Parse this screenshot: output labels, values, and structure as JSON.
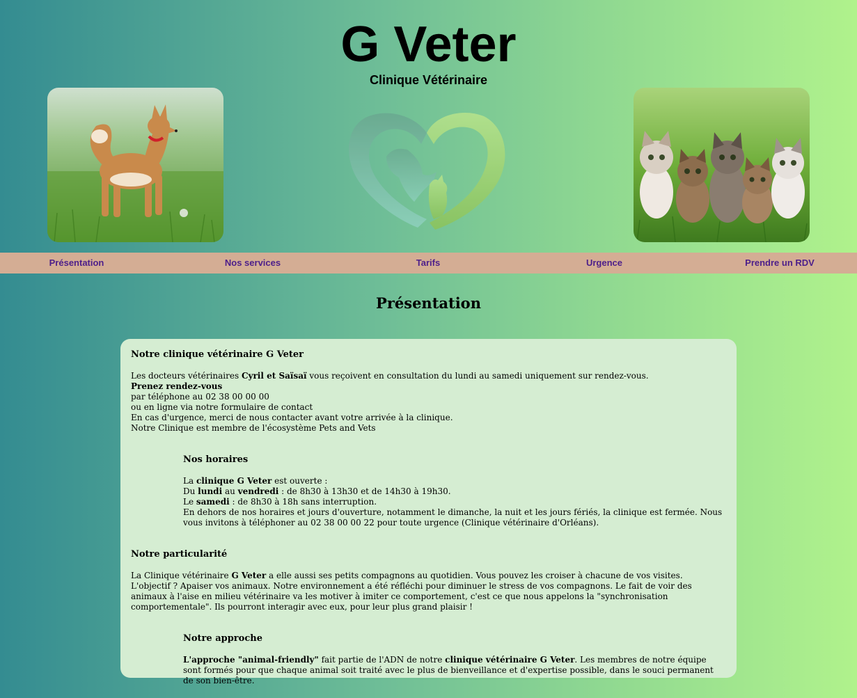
{
  "header": {
    "title": "G Veter",
    "subtitle": "Clinique Vétérinaire"
  },
  "images": {
    "left": "shiba-dog-photo",
    "logo": "heart-pets-logo",
    "right": "kittens-photo"
  },
  "nav": {
    "items": [
      "Présentation",
      "Nos services",
      "Tarifs",
      "Urgence",
      "Prendre un RDV"
    ],
    "link_color": "#4d1f8a",
    "bar_color": "#d4ad94"
  },
  "page": {
    "section_title": "Présentation"
  },
  "card": {
    "clinic": {
      "heading": "Notre clinique vétérinaire G Veter",
      "line1_pre": "Les docteurs vétérinaires ",
      "line1_bold": "Cyril et Saïsaï",
      "line1_post": " vous reçoivent en consultation du lundi au samedi uniquement sur rendez-vous.",
      "line2_bold": "Prenez rendez-vous",
      "line3": "par téléphone au 02 38 00 00 00",
      "line4": "ou en ligne via notre formulaire de contact",
      "line5": "En cas d'urgence, merci de nous contacter avant votre arrivée à la clinique.",
      "line6": "Notre Clinique est membre de l'écosystème Pets and Vets"
    },
    "hours": {
      "heading": "Nos horaires",
      "l1_pre": "La ",
      "l1_bold": "clinique G Veter",
      "l1_post": " est ouverte :",
      "l2_pre": "Du ",
      "l2_b1": "lundi",
      "l2_mid": " au ",
      "l2_b2": "vendredi",
      "l2_post": " : de 8h30 à 13h30 et de 14h30 à 19h30.",
      "l3_pre": "Le ",
      "l3_bold": "samedi",
      "l3_post": " : de 8h30 à 18h sans interruption.",
      "l4": "En dehors de nos horaires et jours d'ouverture, notamment le dimanche, la nuit et les jours fériés, la clinique est fermée. Nous vous invitons à téléphoner au 02 38 00 00 22 pour toute urgence (Clinique vétérinaire d'Orléans)."
    },
    "particularity": {
      "heading": "Notre particularité",
      "l1_pre": "La Clinique vétérinaire ",
      "l1_bold": "G Veter",
      "l1_post": " a elle aussi ses petits compagnons au quotidien. Vous pouvez les croiser à chacune de vos visites.",
      "l2": "L'objectif ? Apaiser vos animaux. Notre environnement a été réfléchi pour diminuer le stress de vos compagnons. Le fait de voir des animaux à l'aise en milieu vétérinaire va les motiver à imiter ce comportement, c'est ce que nous appelons la \"synchronisation comportementale\". Ils pourront interagir avec eux, pour leur plus grand plaisir !"
    },
    "approach": {
      "heading": "Notre approche",
      "l1_b1": "L'approche \"animal-friendly\"",
      "l1_mid": " fait partie de l'ADN de notre ",
      "l1_b2": "clinique vétérinaire G Veter",
      "l1_post": ". Les membres de notre équipe sont formés pour que chaque animal soit traité avec le plus de bienveillance et d'expertise possible, dans le souci permanent de son bien-être."
    }
  }
}
